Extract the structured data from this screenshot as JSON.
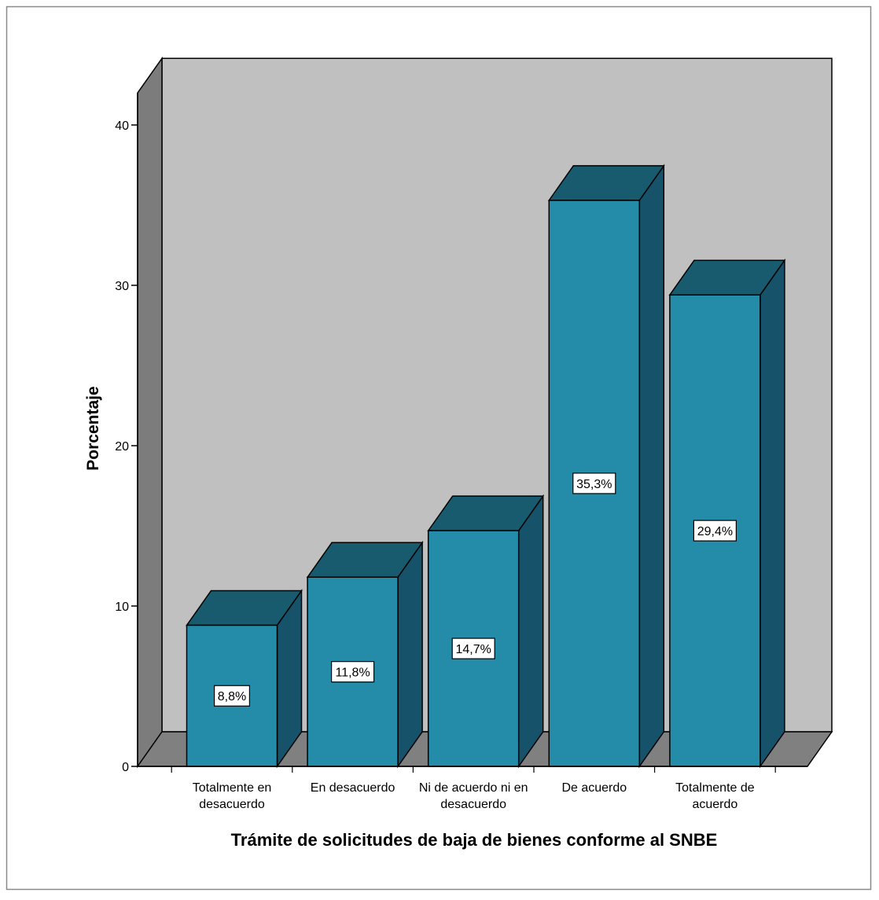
{
  "chart_data": {
    "type": "bar",
    "title": "",
    "xlabel": "Trámite de solicitudes de baja de bienes conforme al SNBE",
    "ylabel": "Porcentaje",
    "ylim": [
      0,
      40
    ],
    "yticks": [
      "0",
      "10",
      "20",
      "30",
      "40"
    ],
    "categories": [
      [
        "Totalmente en",
        "desacuerdo"
      ],
      [
        "En desacuerdo"
      ],
      [
        "Ni de acuerdo ni en",
        "desacuerdo"
      ],
      [
        "De acuerdo"
      ],
      [
        "Totalmente de",
        "acuerdo"
      ]
    ],
    "values": [
      8.8,
      11.8,
      14.7,
      35.3,
      29.4
    ],
    "data_labels": [
      "8,8%",
      "11,8%",
      "14,7%",
      "35,3%",
      "29,4%"
    ],
    "grid": false,
    "legend": "none",
    "colors": {
      "bar_front": "#248ca8",
      "bar_top": "#195b6e",
      "bar_side": "#16536a",
      "back_wall": "#c0c0c0",
      "left_wall": "#7c7c7c",
      "floor": "#808080"
    }
  }
}
